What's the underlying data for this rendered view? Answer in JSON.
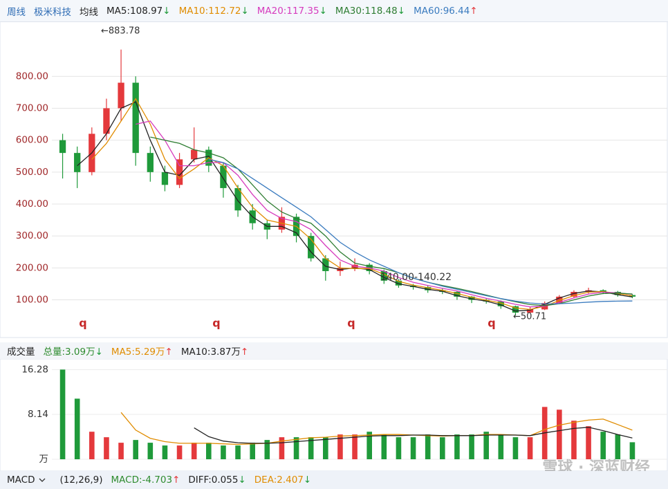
{
  "header": {
    "period": "周线",
    "stock": "极米科技",
    "indicator": "均线"
  },
  "chart_data": [
    {
      "type": "candlestick",
      "open": [
        600,
        560,
        500,
        620,
        700,
        780,
        560,
        500,
        460,
        540,
        570,
        520,
        450,
        380,
        340,
        320,
        360,
        300,
        230,
        190,
        200,
        210,
        190,
        160,
        145,
        140,
        130,
        125,
        110,
        100,
        95,
        80,
        60,
        70,
        90,
        110,
        125,
        130,
        125,
        115
      ],
      "high": [
        620,
        580,
        640,
        730,
        883.78,
        800,
        580,
        520,
        560,
        640,
        580,
        530,
        460,
        400,
        350,
        390,
        370,
        310,
        240,
        220,
        230,
        215,
        195,
        165,
        150,
        145,
        135,
        128,
        112,
        105,
        98,
        82,
        78,
        95,
        115,
        130,
        138,
        133,
        128,
        118
      ],
      "low": [
        480,
        450,
        490,
        600,
        660,
        520,
        470,
        440,
        450,
        530,
        500,
        420,
        360,
        320,
        290,
        310,
        280,
        220,
        160,
        175,
        190,
        180,
        150,
        138,
        132,
        122,
        118,
        100,
        90,
        88,
        72,
        50.71,
        58,
        68,
        88,
        105,
        120,
        118,
        110,
        105
      ],
      "close": [
        560,
        500,
        620,
        700,
        780,
        560,
        500,
        460,
        540,
        570,
        520,
        450,
        380,
        340,
        320,
        360,
        300,
        230,
        190,
        200,
        210,
        190,
        160,
        145,
        140,
        130,
        125,
        110,
        100,
        95,
        80,
        60,
        70,
        90,
        110,
        125,
        130,
        125,
        115,
        110
      ],
      "up_color": "#e4393c",
      "down_color": "#1f9a3a",
      "series": [
        {
          "name": "MA5:108.97",
          "color": "#222222",
          "trend": {
            "text": "↓",
            "color": "#1f9a3a"
          },
          "values": [
            null,
            520,
            560,
            620,
            700,
            720,
            600,
            500,
            490,
            540,
            550,
            480,
            410,
            360,
            330,
            330,
            310,
            250,
            205,
            195,
            200,
            195,
            170,
            150,
            142,
            133,
            127,
            113,
            103,
            96,
            84,
            65,
            68,
            86,
            106,
            120,
            128,
            125,
            116,
            109
          ]
        },
        {
          "name": "MA10:112.72",
          "color": "#e08c00",
          "trend": {
            "text": "↓",
            "color": "#1f9a3a"
          },
          "values": [
            null,
            null,
            540,
            590,
            660,
            730,
            650,
            540,
            480,
            510,
            545,
            520,
            450,
            390,
            350,
            340,
            330,
            290,
            230,
            200,
            198,
            198,
            180,
            158,
            146,
            138,
            130,
            120,
            108,
            99,
            90,
            75,
            70,
            80,
            98,
            113,
            124,
            126,
            120,
            112.72
          ]
        },
        {
          "name": "MA20:117.35",
          "color": "#d63bbd",
          "trend": {
            "text": "↓",
            "color": "#1f9a3a"
          },
          "values": [
            null,
            null,
            null,
            null,
            null,
            650,
            660,
            600,
            520,
            520,
            530,
            530,
            490,
            430,
            380,
            355,
            345,
            320,
            270,
            225,
            205,
            200,
            190,
            170,
            155,
            145,
            136,
            128,
            116,
            105,
            96,
            86,
            78,
            80,
            92,
            106,
            118,
            124,
            122,
            117.35
          ]
        },
        {
          "name": "MA30:118.48",
          "color": "#2e7d32",
          "trend": {
            "text": "↓",
            "color": "#1f9a3a"
          },
          "values": [
            null,
            null,
            null,
            null,
            null,
            null,
            610,
            600,
            590,
            570,
            560,
            545,
            510,
            460,
            410,
            375,
            355,
            340,
            300,
            250,
            215,
            205,
            198,
            185,
            168,
            155,
            145,
            136,
            126,
            115,
            104,
            94,
            85,
            82,
            88,
            100,
            112,
            120,
            121,
            118.48
          ]
        },
        {
          "name": "MA60:96.44",
          "color": "#3a7bbf",
          "trend": {
            "text": "↑",
            "color": "#e4393c"
          },
          "values": [
            null,
            null,
            null,
            null,
            null,
            null,
            null,
            null,
            null,
            null,
            540,
            530,
            510,
            480,
            450,
            420,
            390,
            360,
            320,
            280,
            250,
            225,
            205,
            185,
            168,
            155,
            143,
            133,
            123,
            113,
            104,
            96,
            90,
            87,
            88,
            90,
            93,
            95,
            96,
            96.44
          ]
        }
      ],
      "ylim": [
        -18,
        974
      ],
      "yticks": [
        {
          "value": 100,
          "label": "100.00"
        },
        {
          "value": 200,
          "label": "200.00"
        },
        {
          "value": 300,
          "label": "300.00"
        },
        {
          "value": 400,
          "label": "400.00"
        },
        {
          "value": 500,
          "label": "500.00"
        },
        {
          "value": 600,
          "label": "600.00"
        },
        {
          "value": 700,
          "label": "700.00"
        },
        {
          "value": 800,
          "label": "800.00"
        }
      ],
      "grid": true,
      "annotations": [
        "←883.78",
        "140.00-140.22",
        "←50.71",
        "q",
        "q",
        "q",
        "q"
      ]
    },
    {
      "type": "volume",
      "title": "成交量",
      "summary": [
        {
          "name": "总量:3.09万",
          "color": "#2e8b2e",
          "trend": {
            "text": "↓",
            "color": "#1f9a3a"
          }
        }
      ],
      "values": [
        16.28,
        11,
        5,
        4,
        3,
        3.5,
        3,
        2.5,
        2.5,
        3,
        3,
        2.5,
        2.5,
        3,
        3.5,
        4,
        4,
        4,
        4,
        4.5,
        4.5,
        5,
        4.5,
        4,
        4,
        4.5,
        4,
        4.5,
        4.5,
        5,
        4.5,
        4,
        4,
        9.5,
        9,
        7,
        6,
        5,
        4.5,
        3.09
      ],
      "series": [
        {
          "name": "MA5:5.29万",
          "color": "#e08c00",
          "trend": {
            "text": "↑",
            "color": "#e4393c"
          },
          "values": [
            null,
            null,
            null,
            null,
            8.5,
            5.3,
            3.8,
            3.2,
            2.9,
            2.9,
            2.9,
            2.8,
            2.7,
            2.8,
            2.9,
            3.3,
            3.6,
            3.9,
            4.0,
            4.2,
            4.3,
            4.4,
            4.5,
            4.5,
            4.4,
            4.3,
            4.2,
            4.3,
            4.3,
            4.5,
            4.5,
            4.4,
            4.3,
            5.4,
            6.2,
            6.7,
            7.1,
            7.3,
            6.3,
            5.29
          ]
        },
        {
          "name": "MA10:3.87万",
          "color": "#222222",
          "trend": {
            "text": "↑",
            "color": "#e4393c"
          },
          "values": [
            null,
            null,
            null,
            null,
            null,
            null,
            null,
            null,
            null,
            5.7,
            4.1,
            3.3,
            3.0,
            2.9,
            2.9,
            3.0,
            3.2,
            3.4,
            3.6,
            3.8,
            4.0,
            4.2,
            4.3,
            4.3,
            4.4,
            4.4,
            4.3,
            4.3,
            4.3,
            4.4,
            4.4,
            4.4,
            4.3,
            4.8,
            5.2,
            5.6,
            5.8,
            5.2,
            4.5,
            3.87
          ]
        }
      ],
      "ylim": [
        0,
        17.2
      ],
      "yticks": [
        {
          "value": 0,
          "label": "万"
        },
        8.14,
        16.28
      ]
    }
  ],
  "macd": {
    "name": "MACD",
    "params": "(12,26,9)",
    "items": [
      {
        "name": "MACD:-4.703",
        "color": "#2e8b2e",
        "trend": {
          "text": "↑",
          "color": "#e4393c"
        }
      },
      {
        "name": "DIFF:0.055",
        "color": "#222222",
        "trend": {
          "text": "↓",
          "color": "#1f9a3a"
        }
      },
      {
        "name": "DEA:2.407",
        "color": "#e08c00",
        "trend": {
          "text": "↓",
          "color": "#1f9a3a"
        }
      }
    ]
  },
  "watermark": "雪球 · 深蓝财经"
}
